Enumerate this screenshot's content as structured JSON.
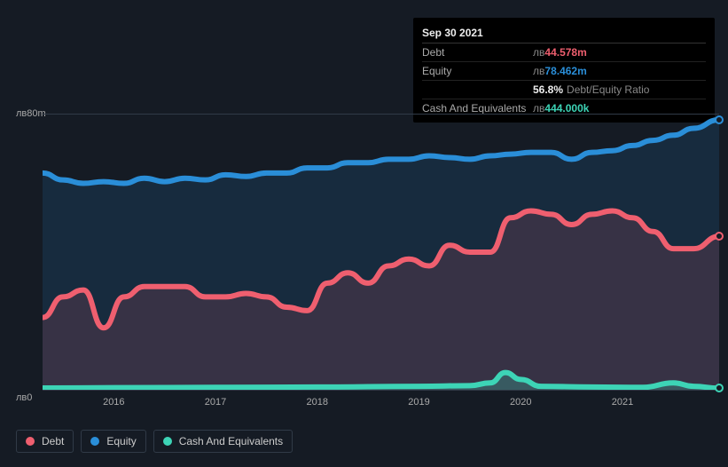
{
  "tooltip": {
    "date": "Sep 30 2021",
    "currency": "лв",
    "rows": {
      "debt": {
        "label": "Debt",
        "value": "44.578m"
      },
      "equity": {
        "label": "Equity",
        "value": "78.462m"
      },
      "ratio": {
        "label": "",
        "value": "56.8%",
        "suffix": "Debt/Equity Ratio"
      },
      "cash": {
        "label": "Cash And Equivalents",
        "value": "444.000k"
      }
    }
  },
  "legend": {
    "debt": "Debt",
    "equity": "Equity",
    "cash": "Cash And Equivalents"
  },
  "chart": {
    "type": "area",
    "background_color": "#151b24",
    "grid_color": "#303a47",
    "text_color": "#aaaaaa",
    "y_axis": {
      "min": 0,
      "max": 80,
      "unit_prefix": "лв",
      "top_label": "лв80m",
      "bottom_label": "лв0"
    },
    "x_axis": {
      "min": 2015.3,
      "max": 2021.95,
      "ticks": [
        2016,
        2017,
        2018,
        2019,
        2020,
        2021
      ]
    },
    "series": {
      "equity": {
        "color": "#2a8ed8",
        "fill_opacity": 0.15,
        "line_width": 2,
        "data": [
          [
            2015.3,
            63
          ],
          [
            2015.5,
            61
          ],
          [
            2015.7,
            60
          ],
          [
            2015.9,
            60.5
          ],
          [
            2016.1,
            60
          ],
          [
            2016.3,
            61.5
          ],
          [
            2016.5,
            60.5
          ],
          [
            2016.7,
            61.5
          ],
          [
            2016.9,
            61
          ],
          [
            2017.1,
            62.5
          ],
          [
            2017.3,
            62
          ],
          [
            2017.5,
            63
          ],
          [
            2017.7,
            63
          ],
          [
            2017.9,
            64.5
          ],
          [
            2018.1,
            64.5
          ],
          [
            2018.3,
            66
          ],
          [
            2018.5,
            66
          ],
          [
            2018.7,
            67
          ],
          [
            2018.9,
            67
          ],
          [
            2019.1,
            68
          ],
          [
            2019.3,
            67.5
          ],
          [
            2019.5,
            67
          ],
          [
            2019.7,
            68
          ],
          [
            2019.9,
            68.5
          ],
          [
            2020.1,
            69
          ],
          [
            2020.3,
            69
          ],
          [
            2020.5,
            67
          ],
          [
            2020.7,
            69
          ],
          [
            2020.9,
            69.5
          ],
          [
            2021.1,
            71
          ],
          [
            2021.3,
            72.5
          ],
          [
            2021.5,
            74
          ],
          [
            2021.7,
            76
          ],
          [
            2021.95,
            78.5
          ]
        ]
      },
      "debt": {
        "color": "#ef5f6f",
        "fill_opacity": 0.15,
        "line_width": 2,
        "data": [
          [
            2015.3,
            21
          ],
          [
            2015.5,
            27
          ],
          [
            2015.7,
            29
          ],
          [
            2015.9,
            18
          ],
          [
            2016.1,
            27
          ],
          [
            2016.3,
            30
          ],
          [
            2016.5,
            30
          ],
          [
            2016.7,
            30
          ],
          [
            2016.9,
            27
          ],
          [
            2017.1,
            27
          ],
          [
            2017.3,
            28
          ],
          [
            2017.5,
            27
          ],
          [
            2017.7,
            24
          ],
          [
            2017.9,
            23
          ],
          [
            2018.1,
            31
          ],
          [
            2018.3,
            34
          ],
          [
            2018.5,
            31
          ],
          [
            2018.7,
            36
          ],
          [
            2018.9,
            38
          ],
          [
            2019.1,
            36
          ],
          [
            2019.3,
            42
          ],
          [
            2019.5,
            40
          ],
          [
            2019.7,
            40
          ],
          [
            2019.9,
            50
          ],
          [
            2020.1,
            52
          ],
          [
            2020.3,
            51
          ],
          [
            2020.5,
            48
          ],
          [
            2020.7,
            51
          ],
          [
            2020.9,
            52
          ],
          [
            2021.1,
            50
          ],
          [
            2021.3,
            46
          ],
          [
            2021.5,
            41
          ],
          [
            2021.7,
            41
          ],
          [
            2021.95,
            44.6
          ]
        ]
      },
      "cash": {
        "color": "#3dd4b6",
        "fill_opacity": 0.25,
        "line_width": 2,
        "data": [
          [
            2015.3,
            0.5
          ],
          [
            2016.0,
            0.6
          ],
          [
            2017.0,
            0.7
          ],
          [
            2018.0,
            0.8
          ],
          [
            2019.0,
            1.0
          ],
          [
            2019.5,
            1.2
          ],
          [
            2019.7,
            2.0
          ],
          [
            2019.85,
            5.0
          ],
          [
            2020.0,
            3.0
          ],
          [
            2020.2,
            1.0
          ],
          [
            2020.7,
            0.8
          ],
          [
            2021.2,
            0.7
          ],
          [
            2021.5,
            2.0
          ],
          [
            2021.7,
            1.0
          ],
          [
            2021.95,
            0.44
          ]
        ]
      }
    }
  }
}
